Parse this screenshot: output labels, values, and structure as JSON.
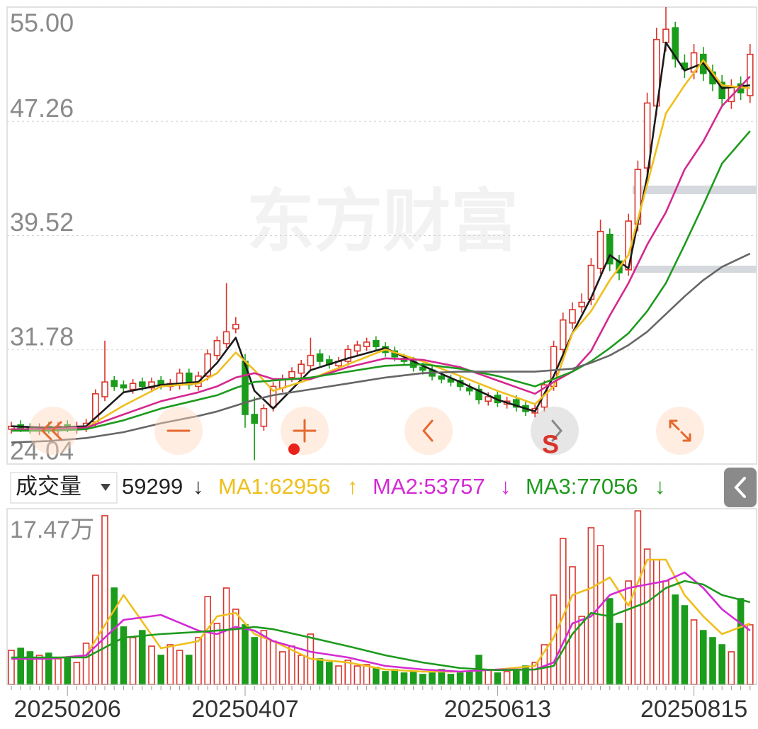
{
  "chart_data": [
    {
      "type": "candlestick",
      "watermark": "东方财富",
      "signal_label": "S",
      "up_color": "#d9342b",
      "down_color": "#1b9c1b",
      "ylim": [
        24.04,
        55.0
      ],
      "yticks": [
        {
          "value": 55.0,
          "label": "55.00"
        },
        47.26,
        39.52,
        31.78,
        24.04
      ],
      "grid": true,
      "open": [
        26.4,
        26.7,
        26.5,
        26.3,
        26.6,
        26.3,
        26.7,
        26.4,
        26.5,
        26.9,
        28.6,
        29.7,
        29.4,
        29.1,
        29.6,
        29.2,
        29.7,
        29.3,
        29.4,
        30.2,
        29.3,
        30.0,
        31.4,
        32.2,
        33.2,
        31.0,
        27.4,
        26.6,
        27.9,
        29.2,
        29.9,
        30.2,
        30.7,
        31.5,
        31.1,
        30.7,
        31.0,
        31.7,
        32.0,
        32.4,
        32.0,
        31.7,
        31.2,
        31.0,
        30.6,
        30.4,
        30.0,
        29.8,
        29.7,
        29.2,
        29.1,
        28.3,
        28.7,
        28.1,
        28.4,
        28.0,
        27.5,
        27.9,
        29.3,
        31.8,
        33.6,
        34.7,
        35.2,
        37.3,
        39.6,
        37.8,
        37.2,
        40.3,
        44.1,
        48.3,
        52.6,
        53.6,
        51.2,
        50.6,
        51.8,
        50.6,
        49.9,
        48.6,
        49.8,
        49.0
      ],
      "high": [
        26.9,
        27.0,
        26.8,
        26.8,
        26.9,
        26.9,
        27.0,
        26.9,
        27.1,
        29.1,
        32.4,
        30.0,
        29.7,
        29.8,
        29.9,
        29.9,
        30.0,
        29.8,
        30.5,
        30.5,
        30.3,
        31.8,
        32.7,
        36.3,
        34.0,
        31.5,
        28.6,
        28.1,
        29.6,
        30.1,
        30.6,
        31.1,
        32.6,
        31.8,
        31.4,
        31.3,
        32.1,
        32.4,
        32.6,
        32.7,
        32.3,
        32.0,
        31.5,
        31.3,
        30.9,
        30.7,
        30.3,
        30.1,
        30.0,
        29.5,
        29.4,
        28.9,
        29.0,
        28.6,
        28.7,
        28.3,
        28.1,
        29.7,
        32.4,
        34.3,
        35.0,
        35.6,
        38.0,
        40.6,
        40.0,
        38.2,
        41.0,
        44.6,
        49.2,
        53.6,
        55.0,
        54.0,
        51.8,
        52.5,
        52.3,
        51.1,
        50.4,
        50.1,
        50.3,
        52.5
      ],
      "low": [
        26.1,
        26.2,
        26.1,
        26.0,
        26.1,
        26.0,
        26.2,
        26.1,
        26.2,
        26.6,
        28.3,
        29.0,
        28.9,
        28.8,
        29.0,
        28.9,
        29.1,
        29.0,
        29.1,
        29.1,
        29.0,
        29.7,
        31.1,
        31.9,
        32.9,
        26.5,
        24.3,
        26.3,
        27.6,
        28.9,
        29.6,
        29.9,
        30.4,
        30.7,
        30.5,
        30.4,
        30.7,
        31.4,
        31.7,
        31.7,
        31.3,
        31.0,
        30.7,
        30.3,
        30.1,
        29.7,
        29.5,
        29.3,
        29.0,
        28.7,
        28.1,
        28.0,
        27.9,
        27.8,
        27.6,
        27.3,
        27.2,
        27.6,
        29.0,
        31.4,
        33.2,
        34.3,
        34.8,
        36.9,
        37.1,
        36.5,
        36.8,
        39.8,
        43.6,
        47.7,
        52.0,
        50.9,
        50.2,
        50.1,
        50.0,
        49.3,
        48.3,
        48.1,
        48.7,
        48.5
      ],
      "close": [
        26.6,
        26.5,
        26.4,
        26.5,
        26.4,
        26.6,
        26.5,
        26.6,
        26.8,
        28.8,
        29.6,
        29.3,
        29.2,
        29.5,
        29.3,
        29.6,
        29.4,
        29.5,
        30.2,
        29.4,
        30.0,
        31.5,
        32.4,
        33.0,
        33.5,
        27.4,
        26.8,
        27.8,
        29.3,
        29.8,
        30.3,
        30.8,
        31.4,
        31.0,
        30.8,
        31.0,
        31.8,
        32.1,
        32.3,
        32.0,
        31.6,
        31.3,
        31.0,
        30.6,
        30.4,
        30.0,
        29.8,
        29.6,
        29.3,
        29.0,
        28.4,
        28.6,
        28.2,
        28.3,
        27.9,
        27.6,
        27.8,
        29.4,
        32.0,
        33.8,
        34.5,
        35.0,
        37.5,
        39.8,
        37.6,
        37.0,
        40.5,
        44.0,
        48.5,
        52.8,
        53.5,
        51.5,
        50.8,
        51.9,
        50.5,
        49.8,
        48.8,
        49.6,
        49.2,
        51.8
      ],
      "series": [
        {
          "color": "#1a1a1a",
          "x": [
            0,
            4,
            8,
            12,
            16,
            20,
            22,
            24,
            26,
            28,
            32,
            36,
            40,
            44,
            48,
            52,
            56,
            58,
            60,
            62,
            64,
            66,
            68,
            70,
            72,
            74,
            76,
            79
          ],
          "values": [
            26.6,
            26.5,
            26.6,
            28.9,
            29.4,
            29.6,
            30.9,
            32.6,
            29.0,
            27.8,
            30.4,
            31.2,
            31.9,
            30.7,
            29.6,
            28.4,
            27.6,
            30.0,
            32.9,
            35.3,
            38.2,
            37.3,
            43.5,
            52.6,
            50.7,
            51.2,
            49.5,
            49.7
          ]
        },
        {
          "color": "#efbf1c",
          "x": [
            0,
            4,
            8,
            12,
            16,
            20,
            22,
            24,
            26,
            28,
            32,
            36,
            40,
            44,
            48,
            52,
            56,
            58,
            60,
            62,
            64,
            66,
            68,
            70,
            72,
            74,
            76,
            79
          ],
          "values": [
            26.4,
            26.4,
            26.5,
            28.0,
            29.3,
            29.5,
            30.2,
            31.6,
            30.4,
            29.0,
            29.8,
            30.8,
            31.8,
            31.0,
            30.0,
            29.0,
            28.1,
            29.3,
            32.9,
            34.4,
            36.5,
            38.2,
            43.0,
            47.8,
            49.7,
            51.4,
            49.7,
            49.5
          ]
        },
        {
          "color": "#d4288f",
          "x": [
            0,
            4,
            8,
            12,
            16,
            20,
            22,
            24,
            26,
            28,
            32,
            36,
            40,
            44,
            48,
            52,
            56,
            58,
            60,
            62,
            64,
            66,
            68,
            70,
            72,
            74,
            76,
            79
          ],
          "values": [
            26.4,
            26.4,
            26.5,
            27.4,
            28.3,
            28.9,
            29.3,
            29.9,
            30.2,
            29.8,
            29.8,
            30.6,
            31.2,
            31.1,
            30.6,
            29.7,
            28.8,
            29.6,
            30.3,
            31.7,
            34.1,
            36.3,
            38.9,
            41.1,
            44.0,
            45.9,
            48.3,
            50.3
          ]
        },
        {
          "color": "#1e9a1e",
          "x": [
            0,
            4,
            8,
            12,
            16,
            20,
            22,
            24,
            26,
            28,
            32,
            36,
            40,
            44,
            48,
            52,
            56,
            58,
            60,
            62,
            64,
            66,
            68,
            70,
            72,
            74,
            76,
            79
          ],
          "values": [
            26.3,
            26.3,
            26.4,
            27.0,
            27.8,
            28.4,
            28.7,
            29.2,
            29.6,
            29.7,
            29.9,
            30.3,
            30.7,
            30.8,
            30.5,
            30.0,
            29.3,
            29.8,
            30.3,
            31.0,
            31.9,
            32.9,
            34.4,
            36.3,
            38.9,
            41.6,
            44.4,
            46.6
          ]
        },
        {
          "color": "#666666",
          "x": [
            0,
            4,
            8,
            12,
            16,
            20,
            22,
            24,
            26,
            28,
            32,
            36,
            40,
            44,
            48,
            52,
            56,
            58,
            60,
            62,
            64,
            66,
            68,
            70,
            72,
            74,
            76,
            79
          ],
          "values": [
            25.5,
            25.6,
            25.8,
            26.2,
            26.8,
            27.3,
            27.6,
            28.0,
            28.4,
            28.7,
            29.1,
            29.5,
            29.9,
            30.2,
            30.3,
            30.3,
            30.3,
            30.4,
            30.5,
            30.9,
            31.4,
            32.1,
            33.0,
            34.2,
            35.4,
            36.5,
            37.4,
            38.3
          ]
        }
      ]
    },
    {
      "type": "bar",
      "indicator": "成交量",
      "current": 59299,
      "current_arrow": "↓",
      "ylim": [
        0,
        174700
      ],
      "yticks": [
        {
          "value": 174700,
          "label": "17.47万"
        }
      ],
      "categories": [
        null,
        null,
        null,
        null,
        null,
        null,
        "20250206",
        null,
        null,
        null,
        null,
        null,
        null,
        null,
        null,
        null,
        null,
        null,
        null,
        null,
        null,
        null,
        null,
        null,
        null,
        "20250407",
        null,
        null,
        null,
        null,
        null,
        null,
        null,
        null,
        null,
        null,
        null,
        null,
        null,
        null,
        null,
        null,
        null,
        null,
        null,
        null,
        null,
        null,
        null,
        null,
        null,
        null,
        "20250613",
        null,
        null,
        null,
        null,
        null,
        null,
        null,
        null,
        null,
        null,
        null,
        null,
        null,
        null,
        null,
        null,
        null,
        null,
        null,
        null,
        "20250815",
        null,
        null,
        null,
        null,
        null,
        null
      ],
      "values": [
        33800,
        35900,
        32400,
        28900,
        31000,
        25400,
        26800,
        21800,
        40900,
        108500,
        167700,
        95800,
        57100,
        46500,
        53500,
        38000,
        28900,
        39400,
        33800,
        28900,
        46500,
        87300,
        60600,
        95800,
        74700,
        59200,
        46500,
        53500,
        43000,
        32400,
        38000,
        28900,
        50000,
        25400,
        21800,
        18300,
        24000,
        18300,
        19700,
        16900,
        12700,
        14800,
        11300,
        12700,
        9900,
        11300,
        14800,
        9900,
        11300,
        12700,
        28900,
        14800,
        11300,
        12700,
        14800,
        18300,
        21800,
        39400,
        88800,
        145100,
        116900,
        67600,
        155700,
        138100,
        85200,
        60600,
        102800,
        172500,
        134500,
        124000,
        102800,
        88800,
        78200,
        64100,
        53500,
        46500,
        39400,
        32400,
        85200,
        59200
      ],
      "series": [
        {
          "name": "MA1:62956",
          "readout_arrow": "↑",
          "color": "#efbf1c",
          "x": [
            0,
            4,
            8,
            12,
            16,
            20,
            22,
            24,
            26,
            28,
            32,
            36,
            40,
            44,
            48,
            52,
            56,
            58,
            60,
            62,
            64,
            66,
            68,
            70,
            72,
            74,
            76,
            79
          ],
          "values": [
            25400,
            25400,
            28900,
            88800,
            35900,
            43000,
            67600,
            71100,
            50000,
            43000,
            25400,
            21800,
            14800,
            12700,
            12700,
            14800,
            18300,
            46500,
            88800,
            95800,
            106400,
            78200,
            124000,
            124000,
            88800,
            67600,
            50000,
            60600
          ]
        },
        {
          "name": "MA2:53757",
          "readout_arrow": "↓",
          "color": "#d42ad4",
          "x": [
            0,
            4,
            8,
            12,
            16,
            20,
            22,
            24,
            26,
            28,
            32,
            36,
            40,
            44,
            48,
            52,
            56,
            58,
            60,
            62,
            64,
            66,
            68,
            70,
            72,
            74,
            76,
            79
          ],
          "values": [
            25400,
            25400,
            28900,
            64100,
            69000,
            53500,
            50000,
            57100,
            53500,
            43000,
            32400,
            26800,
            18300,
            14800,
            12700,
            14800,
            14800,
            21800,
            60600,
            67600,
            88800,
            95800,
            99300,
            102800,
            111300,
            95800,
            74700,
            53500
          ]
        },
        {
          "name": "MA3:77056",
          "readout_arrow": "↓",
          "color": "#1e9a1e",
          "x": [
            0,
            4,
            8,
            12,
            16,
            20,
            22,
            24,
            26,
            28,
            32,
            36,
            40,
            44,
            48,
            52,
            56,
            58,
            60,
            62,
            64,
            66,
            68,
            70,
            72,
            74,
            76,
            79
          ],
          "values": [
            26800,
            26800,
            26800,
            46500,
            50000,
            52100,
            53500,
            54900,
            57100,
            54900,
            46500,
            38000,
            28900,
            21800,
            16200,
            14100,
            14800,
            18300,
            50000,
            71100,
            67600,
            74700,
            81700,
            95800,
            102800,
            99300,
            88800,
            81700
          ]
        }
      ]
    }
  ]
}
